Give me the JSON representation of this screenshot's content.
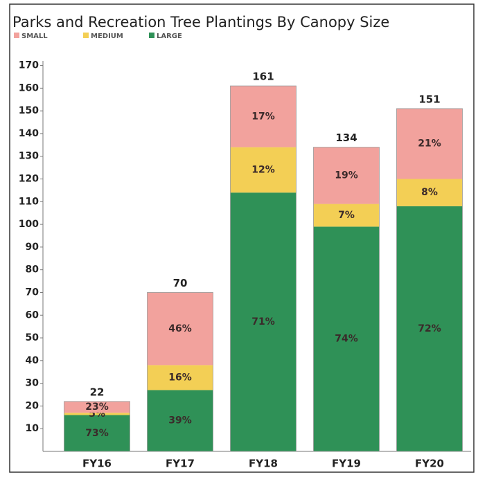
{
  "chart_data": {
    "type": "stacked_bar",
    "title": "Parks and Recreation Tree Plantings By Canopy Size",
    "categories": [
      "FY16",
      "FY17",
      "FY18",
      "FY19",
      "FY20"
    ],
    "series": [
      {
        "name": "LARGE",
        "color": "#2f9157",
        "values": [
          16,
          27,
          114,
          99,
          108
        ],
        "percent_labels": [
          "73%",
          "39%",
          "71%",
          "74%",
          "72%"
        ]
      },
      {
        "name": "MEDIUM",
        "color": "#f3cf55",
        "values": [
          1,
          11,
          20,
          10,
          12
        ],
        "percent_labels": [
          "5%",
          "16%",
          "12%",
          "7%",
          "8%"
        ]
      },
      {
        "name": "SMALL",
        "color": "#f2a29d",
        "values": [
          5,
          32,
          27,
          25,
          31
        ],
        "percent_labels": [
          "23%",
          "46%",
          "17%",
          "19%",
          "21%"
        ]
      }
    ],
    "totals": [
      22,
      70,
      161,
      134,
      151
    ],
    "legend_order": [
      "SMALL",
      "MEDIUM",
      "LARGE"
    ],
    "ylim": [
      0,
      172
    ],
    "yticks": [
      10,
      20,
      30,
      40,
      50,
      60,
      70,
      80,
      90,
      100,
      110,
      120,
      130,
      140,
      150,
      160,
      170
    ]
  }
}
